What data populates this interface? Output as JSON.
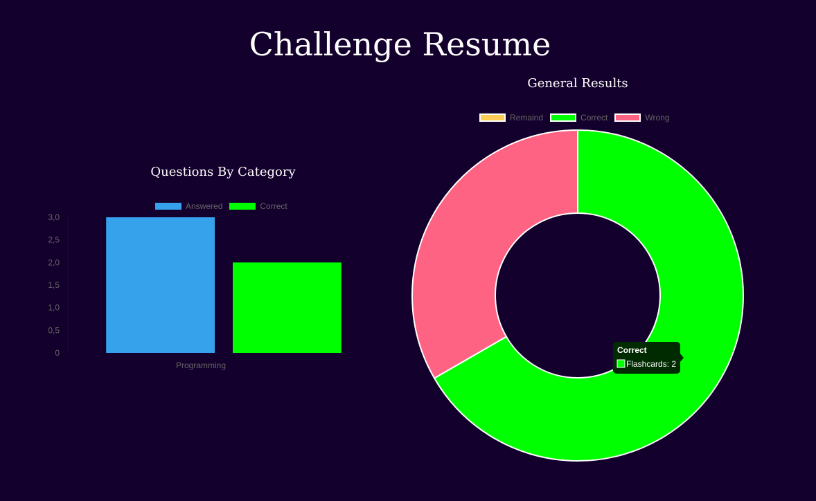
{
  "page": {
    "title": "Challenge Resume"
  },
  "chart_data": [
    {
      "type": "bar",
      "title": "Questions By Category",
      "categories": [
        "Programming"
      ],
      "series": [
        {
          "name": "Answered",
          "values": [
            3
          ],
          "color": "#36a2eb"
        },
        {
          "name": "Correct",
          "values": [
            2
          ],
          "color": "#00ff00"
        }
      ],
      "ylim": [
        0,
        3
      ],
      "yticks": [
        "0",
        "0,5",
        "1,0",
        "1,5",
        "2,0",
        "2,5",
        "3,0"
      ],
      "legend_position": "top",
      "grid": false
    },
    {
      "type": "pie",
      "variant": "doughnut",
      "title": "General Results",
      "labels": [
        "Remaind",
        "Correct",
        "Wrong"
      ],
      "values": [
        0,
        2,
        1
      ],
      "colors": [
        "#ffcd56",
        "#00ff00",
        "#ff6384"
      ],
      "legend_position": "top",
      "tooltip": {
        "title": "Correct",
        "body": "Flashcards: 2"
      }
    }
  ]
}
